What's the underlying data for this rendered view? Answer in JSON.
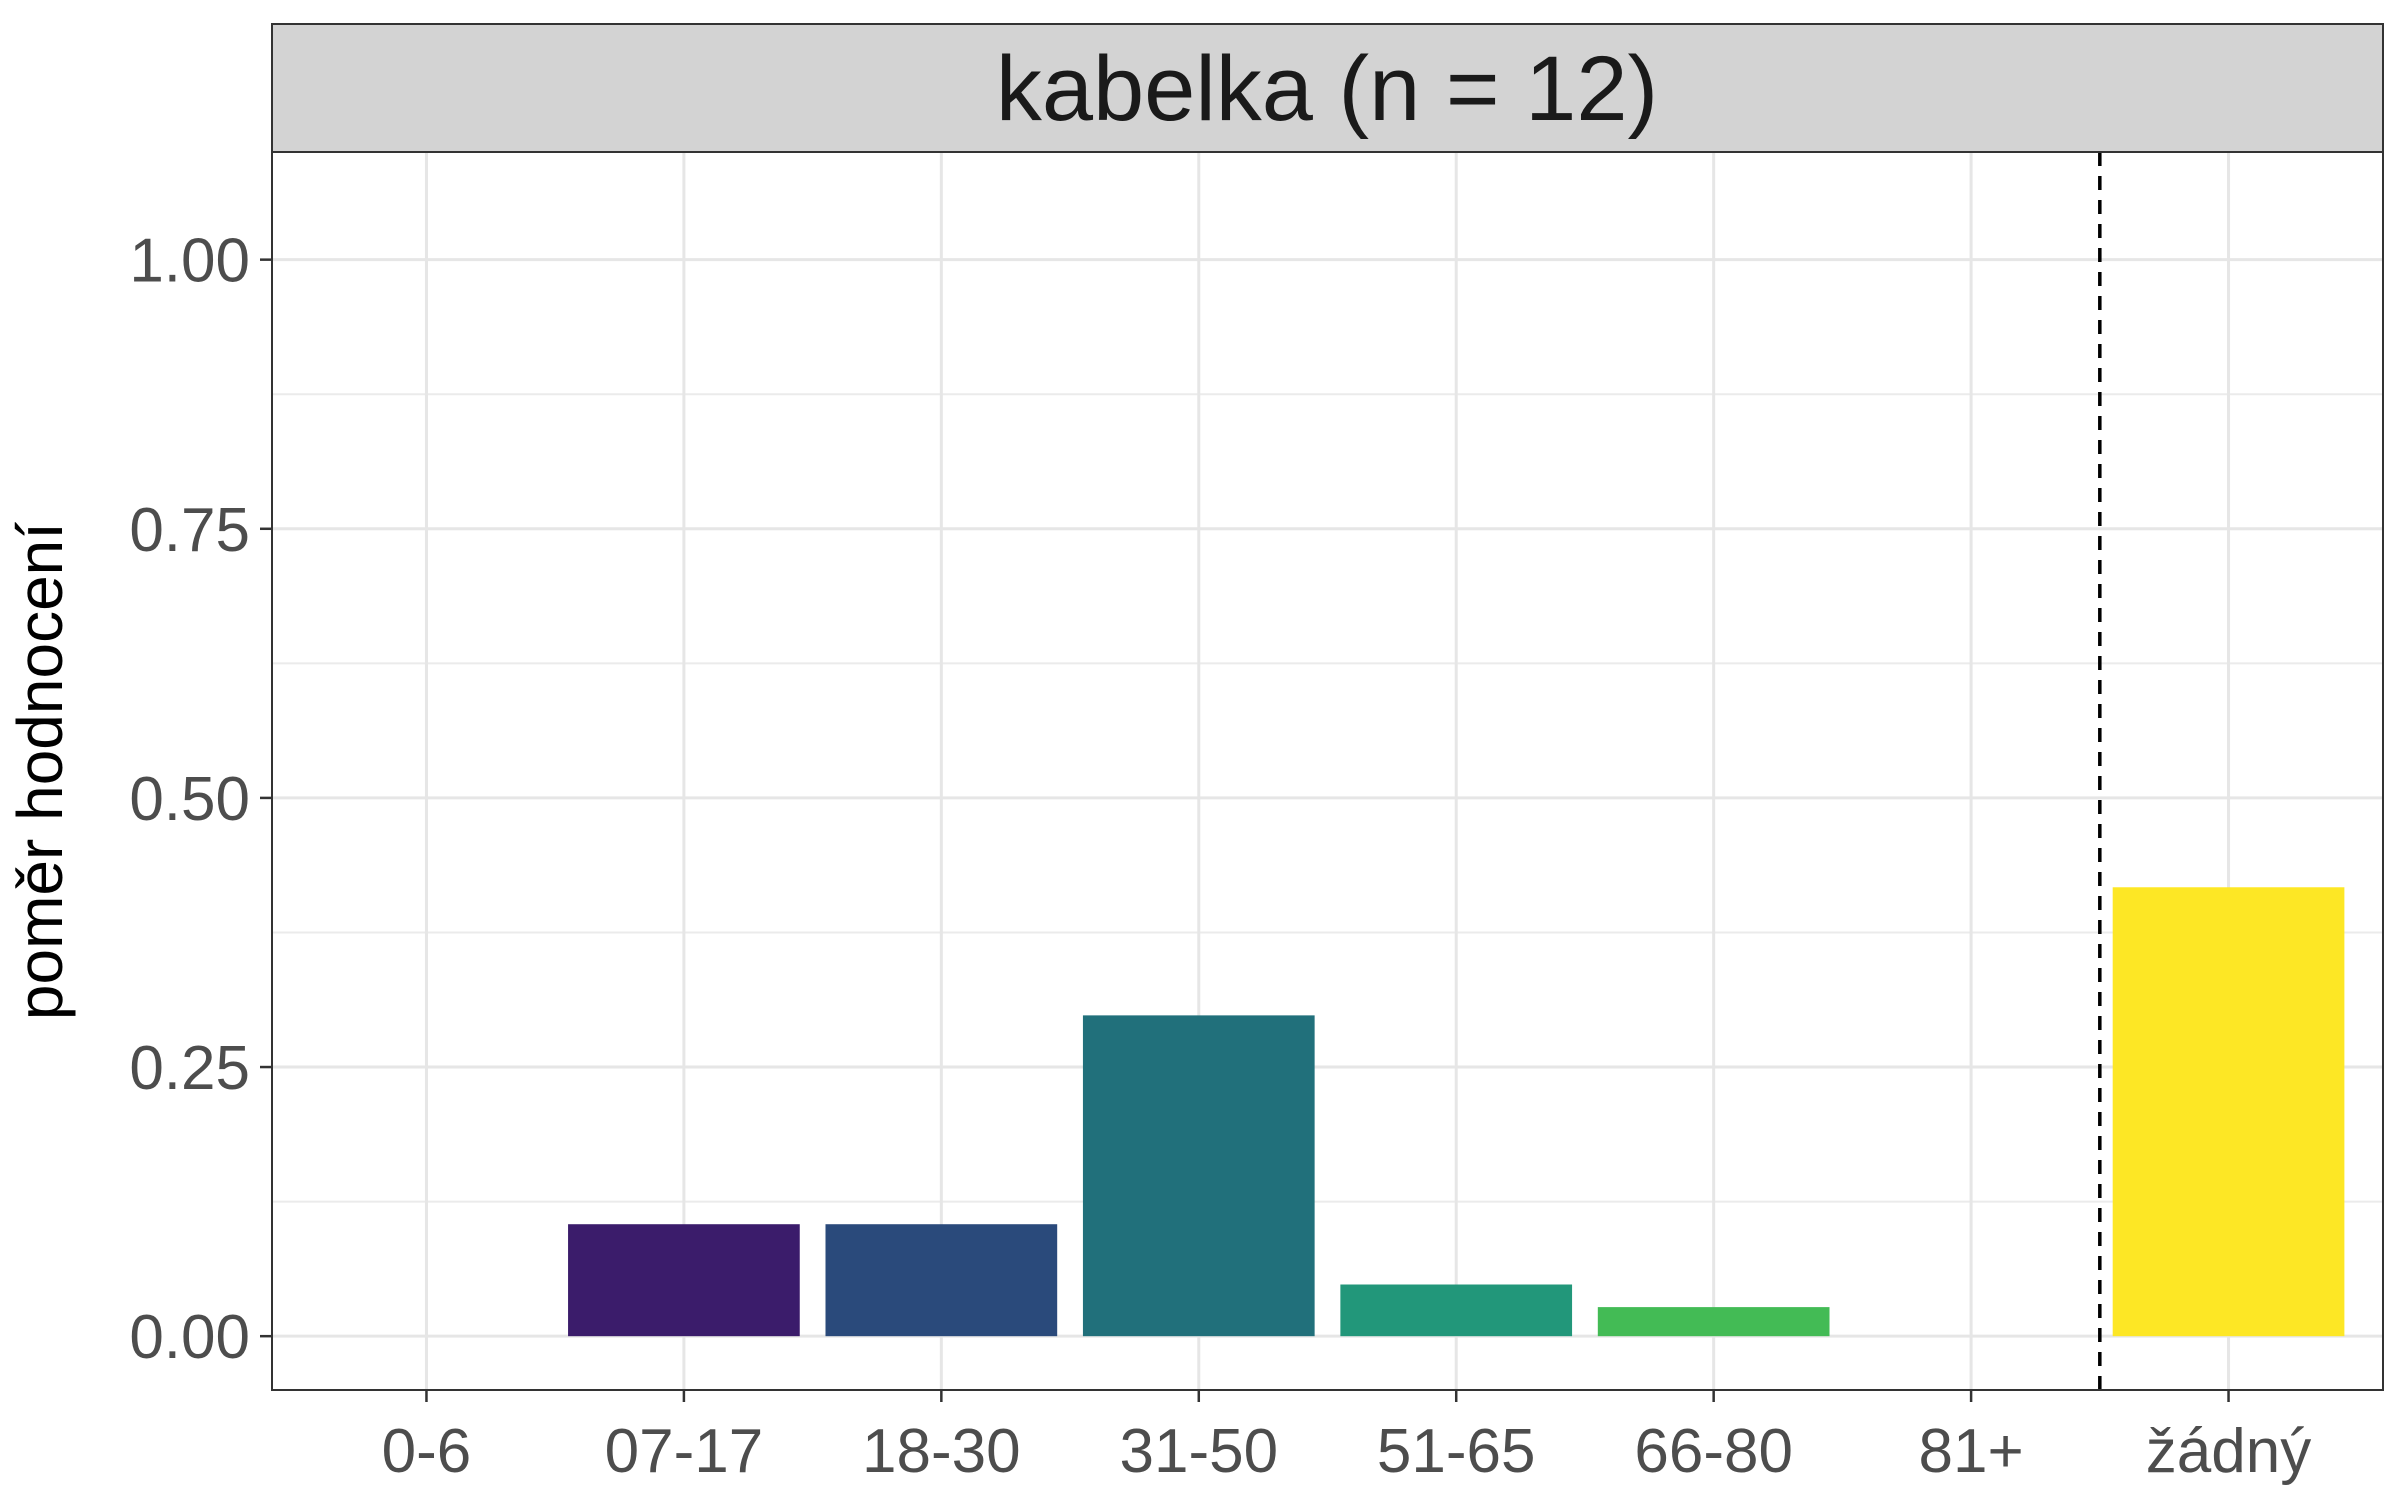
{
  "chart_data": {
    "type": "bar",
    "facet_title": "kabelka (n = 12)",
    "ylabel": "poměr hodnocení",
    "xlabel": "",
    "categories": [
      "0-6",
      "07-17",
      "18-30",
      "31-50",
      "51-65",
      "66-80",
      "81+",
      "žádný"
    ],
    "values": [
      0.0,
      0.104,
      0.104,
      0.298,
      0.048,
      0.027,
      0.0,
      0.417
    ],
    "colors": [
      "#440154",
      "#3B1C6B",
      "#2A4A7B",
      "#21707B",
      "#22977A",
      "#43BB55",
      "#8FD744",
      "#FDE725"
    ],
    "ylim": [
      -0.05,
      1.1
    ],
    "yticks": [
      0.0,
      0.25,
      0.5,
      0.75,
      1.0
    ],
    "ytick_labels": [
      "0.00",
      "0.25",
      "0.50",
      "0.75",
      "1.00"
    ],
    "reference_line": {
      "between": [
        "81+",
        "žádný"
      ],
      "style": "dashed",
      "color": "#000000"
    },
    "grid": true,
    "strip_color": "#D3D3D3"
  }
}
